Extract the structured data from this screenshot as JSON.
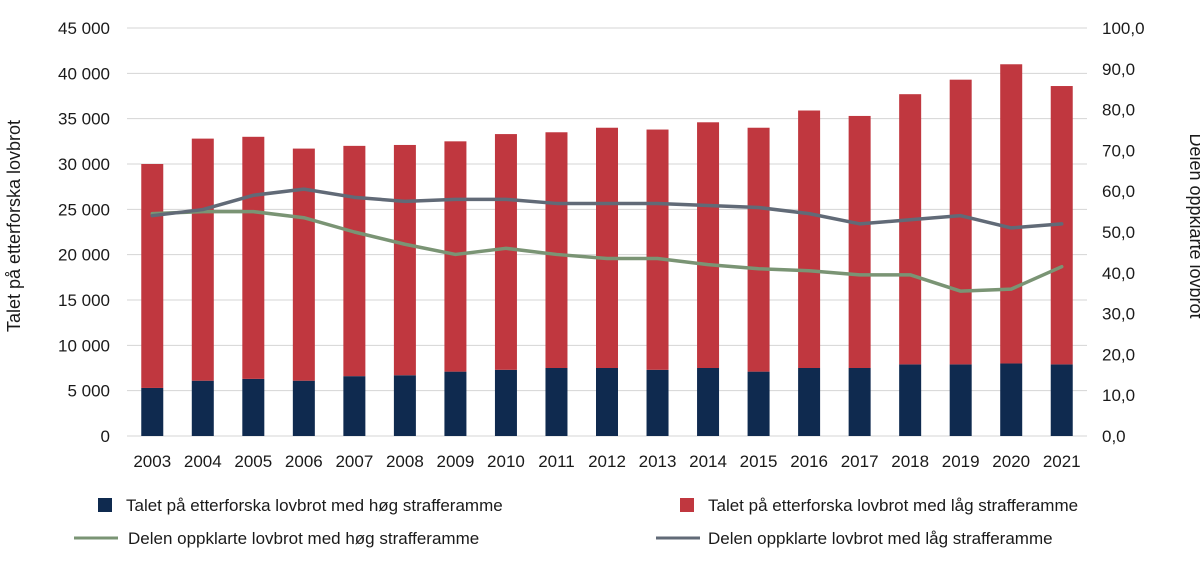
{
  "chart_data": {
    "type": "bar",
    "stacked": true,
    "categories": [
      "2003",
      "2004",
      "2005",
      "2006",
      "2007",
      "2008",
      "2009",
      "2010",
      "2011",
      "2012",
      "2013",
      "2014",
      "2015",
      "2016",
      "2017",
      "2018",
      "2019",
      "2020",
      "2021"
    ],
    "series": [
      {
        "name": "Talet på etterforska lovbrot med høg strafferamme",
        "type": "bar",
        "axis": "left",
        "color": "#0f2a4f",
        "values": [
          5300,
          6100,
          6300,
          6100,
          6600,
          6700,
          7100,
          7300,
          7500,
          7500,
          7300,
          7500,
          7100,
          7500,
          7500,
          7900,
          7900,
          8000,
          7900
        ]
      },
      {
        "name": "Talet på etterforska lovbrot med låg strafferamme",
        "type": "bar",
        "axis": "left",
        "color": "#c0373f",
        "values": [
          24700,
          26700,
          26700,
          25600,
          25400,
          25400,
          25400,
          26000,
          26000,
          26500,
          26500,
          27100,
          26900,
          28400,
          27800,
          29800,
          31400,
          33000,
          30700
        ]
      },
      {
        "name": "Delen oppklarte lovbrot med høg strafferamme",
        "type": "line",
        "axis": "right",
        "color": "#7a9474",
        "values": [
          54.5,
          55.0,
          55.0,
          53.5,
          50.0,
          47.0,
          44.5,
          46.0,
          44.5,
          43.5,
          43.5,
          42.0,
          41.0,
          40.5,
          39.5,
          39.5,
          35.5,
          36.0,
          41.5
        ]
      },
      {
        "name": "Delen oppklarte lovbrot med låg strafferamme",
        "type": "line",
        "axis": "right",
        "color": "#616a77",
        "values": [
          54.0,
          55.5,
          59.0,
          60.5,
          58.5,
          57.5,
          58.0,
          58.0,
          57.0,
          57.0,
          57.0,
          56.5,
          56.0,
          54.5,
          52.0,
          53.0,
          54.0,
          51.0,
          52.0
        ]
      }
    ],
    "left_axis": {
      "label": "Talet på etterforska lovbrot",
      "range": [
        0,
        45000
      ],
      "ticks": [
        0,
        5000,
        10000,
        15000,
        20000,
        25000,
        30000,
        35000,
        40000,
        45000
      ],
      "tick_labels": [
        "0",
        "5 000",
        "10 000",
        "15 000",
        "20 000",
        "25 000",
        "30 000",
        "35 000",
        "40 000",
        "45 000"
      ]
    },
    "right_axis": {
      "label": "Delen oppklarte lovbrot",
      "range": [
        0,
        100
      ],
      "ticks": [
        0,
        10,
        20,
        30,
        40,
        50,
        60,
        70,
        80,
        90,
        100
      ],
      "tick_labels": [
        "0,0",
        "10,0",
        "20,0",
        "30,0",
        "40,0",
        "50,0",
        "60,0",
        "70,0",
        "80,0",
        "90,0",
        "100,0"
      ]
    },
    "grid": true,
    "legend_position": "bottom"
  }
}
